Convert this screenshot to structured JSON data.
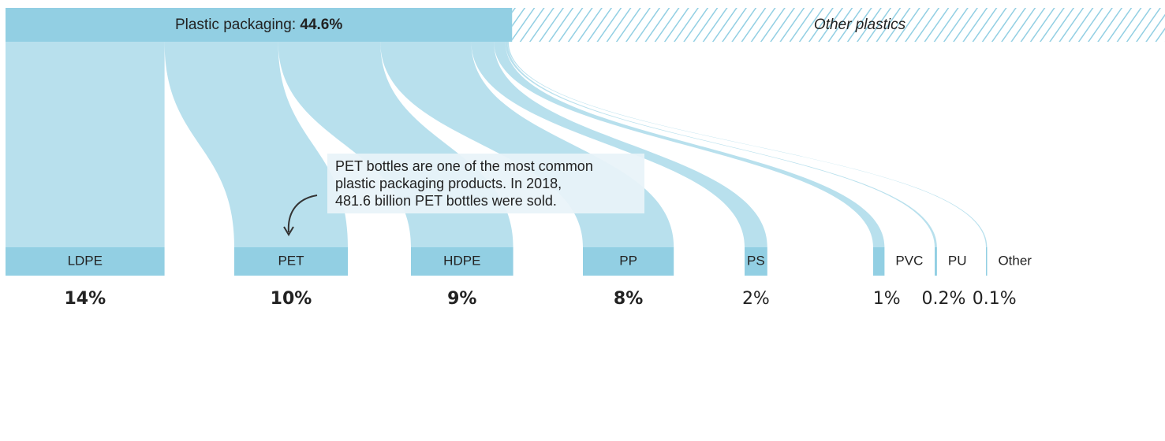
{
  "chart_data": {
    "type": "flow",
    "source": {
      "name": "Plastic packaging:",
      "value": 44.6,
      "value_label": "44.6%"
    },
    "other": "Other plastics",
    "categories": [
      "LDPE",
      "PET",
      "HDPE",
      "PP",
      "PS",
      "PVC",
      "PU",
      "Other"
    ],
    "values": [
      14,
      10,
      9,
      8,
      2,
      1,
      0.2,
      0.1
    ],
    "value_labels": [
      "14%",
      "10%",
      "9%",
      "8%",
      "2%",
      "1%",
      "0.2%",
      "0.1%"
    ],
    "color": "#92cfe3",
    "annotation": [
      "PET bottles are one of the most common",
      "plastic packaging products. In 2018,",
      "481.6 billion PET bottles were sold."
    ]
  }
}
